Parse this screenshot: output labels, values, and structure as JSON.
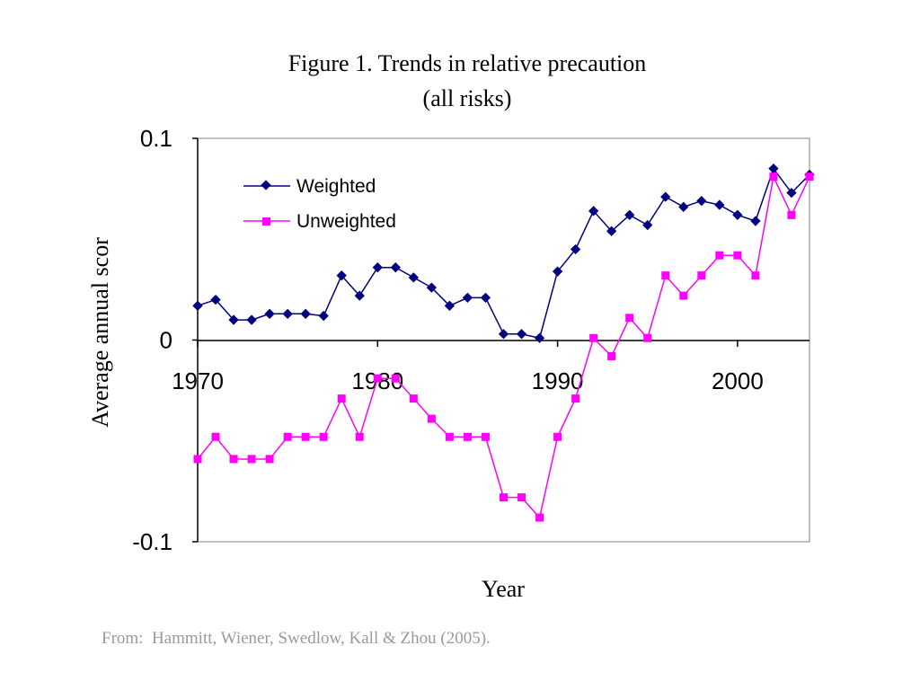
{
  "colors": {
    "weighted": "#000080",
    "unweighted": "#ff00ff",
    "caption": "#9a9a9a"
  },
  "caption": "From:  Hammitt, Wiener, Swedlow, Kall & Zhou (2005).",
  "chart_data": {
    "type": "line",
    "title": "Figure 1. Trends in relative precaution",
    "subtitle": "(all risks)",
    "xlabel": "Year",
    "ylabel": "Average annual scor",
    "xlim": [
      1970,
      2004
    ],
    "ylim": [
      -0.1,
      0.1
    ],
    "x_ticks": [
      "1970",
      "1980",
      "1990",
      "2000"
    ],
    "y_ticks": [
      "0.1",
      "0",
      "-0.1"
    ],
    "grid": false,
    "legend_position": "top-left",
    "x": [
      1970,
      1971,
      1972,
      1973,
      1974,
      1975,
      1976,
      1977,
      1978,
      1979,
      1980,
      1981,
      1982,
      1983,
      1984,
      1985,
      1986,
      1987,
      1988,
      1989,
      1990,
      1991,
      1992,
      1993,
      1994,
      1995,
      1996,
      1997,
      1998,
      1999,
      2000,
      2001,
      2002,
      2003,
      2004
    ],
    "series": [
      {
        "name": "Weighted",
        "marker": "diamond",
        "values": [
          0.017,
          0.02,
          0.01,
          0.01,
          0.013,
          0.013,
          0.013,
          0.012,
          0.032,
          0.022,
          0.036,
          0.036,
          0.031,
          0.026,
          0.017,
          0.021,
          0.021,
          0.003,
          0.003,
          0.001,
          0.034,
          0.045,
          0.064,
          0.054,
          0.062,
          0.057,
          0.071,
          0.066,
          0.069,
          0.067,
          0.062,
          0.059,
          0.085,
          0.073,
          0.082
        ]
      },
      {
        "name": "Unweighted",
        "marker": "square",
        "values": [
          -0.059,
          -0.048,
          -0.059,
          -0.059,
          -0.059,
          -0.048,
          -0.048,
          -0.048,
          -0.029,
          -0.048,
          -0.019,
          -0.019,
          -0.029,
          -0.039,
          -0.048,
          -0.048,
          -0.048,
          -0.078,
          -0.078,
          -0.088,
          -0.048,
          -0.029,
          0.001,
          -0.008,
          0.011,
          0.001,
          0.032,
          0.022,
          0.032,
          0.042,
          0.042,
          0.032,
          0.081,
          0.062,
          0.081
        ]
      }
    ]
  }
}
